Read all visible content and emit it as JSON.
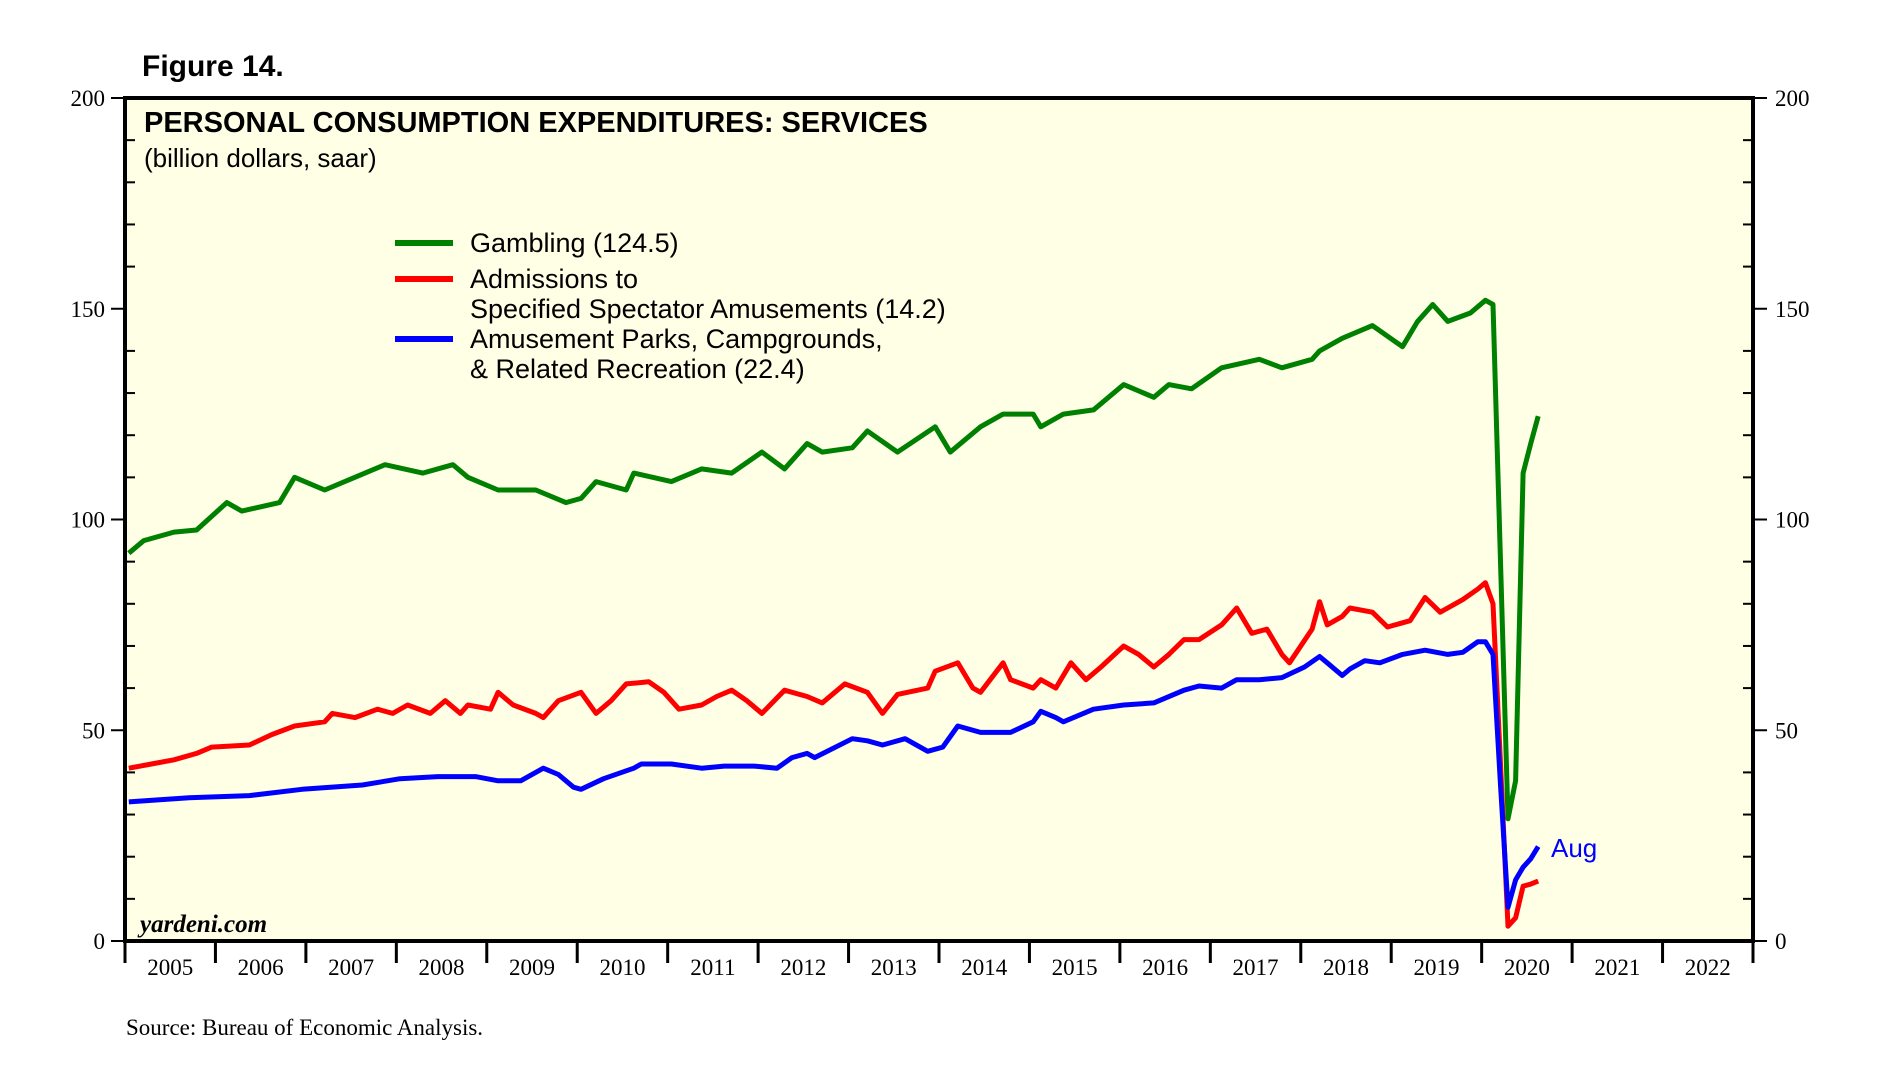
{
  "figure_label": "Figure 14.",
  "watermark": "yardeni.com",
  "source": "Source: Bureau of Economic Analysis.",
  "chart_data": {
    "type": "line",
    "title": "PERSONAL CONSUMPTION EXPENDITURES: SERVICES",
    "subtitle": "(billion dollars, saar)",
    "ylim": [
      0,
      200
    ],
    "yticks": [
      "0",
      "50",
      "100",
      "150",
      "200"
    ],
    "y_axis_sides": [
      "left",
      "right"
    ],
    "xlim": [
      "2005-01",
      "2022-12"
    ],
    "xtick_labels": [
      "2005",
      "2006",
      "2007",
      "2008",
      "2009",
      "2010",
      "2011",
      "2012",
      "2013",
      "2014",
      "2015",
      "2016",
      "2017",
      "2018",
      "2019",
      "2020",
      "2021",
      "2022"
    ],
    "grid": false,
    "legend_placement": "top-left",
    "background_color": "#ffffe6",
    "annotation": {
      "text": "Aug",
      "color": "#0000ff"
    },
    "series": [
      {
        "name": "Gambling (124.5)",
        "color": "#008000",
        "points": [
          [
            "2005-01",
            92
          ],
          [
            "2005-03",
            95
          ],
          [
            "2005-07",
            97
          ],
          [
            "2005-10",
            97.5
          ],
          [
            "2006-02",
            104
          ],
          [
            "2006-04",
            102
          ],
          [
            "2006-09",
            104
          ],
          [
            "2006-11",
            110
          ],
          [
            "2007-03",
            107
          ],
          [
            "2007-07",
            110
          ],
          [
            "2007-11",
            113
          ],
          [
            "2008-04",
            111
          ],
          [
            "2008-08",
            113
          ],
          [
            "2008-10",
            110
          ],
          [
            "2009-02",
            107
          ],
          [
            "2009-07",
            107
          ],
          [
            "2009-11",
            104
          ],
          [
            "2010-01",
            105
          ],
          [
            "2010-03",
            109
          ],
          [
            "2010-07",
            107
          ],
          [
            "2010-08",
            111
          ],
          [
            "2011-01",
            109
          ],
          [
            "2011-05",
            112
          ],
          [
            "2011-09",
            111
          ],
          [
            "2012-01",
            116
          ],
          [
            "2012-04",
            112
          ],
          [
            "2012-07",
            118
          ],
          [
            "2012-09",
            116
          ],
          [
            "2013-01",
            117
          ],
          [
            "2013-03",
            121
          ],
          [
            "2013-07",
            116
          ],
          [
            "2013-12",
            122
          ],
          [
            "2014-02",
            116
          ],
          [
            "2014-06",
            122
          ],
          [
            "2014-09",
            125
          ],
          [
            "2015-01",
            125
          ],
          [
            "2015-02",
            122
          ],
          [
            "2015-05",
            125
          ],
          [
            "2015-09",
            126
          ],
          [
            "2016-01",
            132
          ],
          [
            "2016-05",
            129
          ],
          [
            "2016-07",
            132
          ],
          [
            "2016-10",
            131
          ],
          [
            "2017-02",
            136
          ],
          [
            "2017-07",
            138
          ],
          [
            "2017-10",
            136
          ],
          [
            "2018-02",
            138
          ],
          [
            "2018-03",
            140
          ],
          [
            "2018-06",
            143
          ],
          [
            "2018-10",
            146
          ],
          [
            "2019-02",
            141
          ],
          [
            "2019-04",
            147
          ],
          [
            "2019-06",
            151
          ],
          [
            "2019-08",
            147
          ],
          [
            "2019-11",
            149
          ],
          [
            "2020-01",
            152
          ],
          [
            "2020-02",
            151
          ],
          [
            "2020-03",
            90
          ],
          [
            "2020-04",
            29
          ],
          [
            "2020-05",
            38
          ],
          [
            "2020-06",
            111
          ],
          [
            "2020-07",
            118
          ],
          [
            "2020-08",
            124.5
          ]
        ]
      },
      {
        "name": "Admissions to Specified Spectator Amusements (14.2)",
        "legend_lines": [
          "Admissions to",
          "Specified Spectator Amusements (14.2)"
        ],
        "color": "#ff0000",
        "points": [
          [
            "2005-01",
            41
          ],
          [
            "2005-04",
            42
          ],
          [
            "2005-07",
            43
          ],
          [
            "2005-10",
            44.5
          ],
          [
            "2005-12",
            46
          ],
          [
            "2006-05",
            46.5
          ],
          [
            "2006-08",
            49
          ],
          [
            "2006-11",
            51
          ],
          [
            "2007-03",
            52
          ],
          [
            "2007-04",
            54
          ],
          [
            "2007-07",
            53
          ],
          [
            "2007-10",
            55
          ],
          [
            "2007-12",
            54
          ],
          [
            "2008-02",
            56
          ],
          [
            "2008-05",
            54
          ],
          [
            "2008-07",
            57
          ],
          [
            "2008-09",
            54
          ],
          [
            "2008-10",
            56
          ],
          [
            "2009-01",
            55
          ],
          [
            "2009-02",
            59
          ],
          [
            "2009-04",
            56
          ],
          [
            "2009-07",
            54
          ],
          [
            "2009-08",
            53
          ],
          [
            "2009-10",
            57
          ],
          [
            "2010-01",
            59
          ],
          [
            "2010-03",
            54
          ],
          [
            "2010-05",
            57
          ],
          [
            "2010-07",
            61
          ],
          [
            "2010-10",
            61.5
          ],
          [
            "2010-12",
            59
          ],
          [
            "2011-02",
            55
          ],
          [
            "2011-05",
            56
          ],
          [
            "2011-07",
            58
          ],
          [
            "2011-09",
            59.5
          ],
          [
            "2011-11",
            57
          ],
          [
            "2012-01",
            54
          ],
          [
            "2012-04",
            59.5
          ],
          [
            "2012-07",
            58
          ],
          [
            "2012-09",
            56.5
          ],
          [
            "2012-12",
            61
          ],
          [
            "2013-03",
            59
          ],
          [
            "2013-05",
            54
          ],
          [
            "2013-07",
            58.5
          ],
          [
            "2013-11",
            60
          ],
          [
            "2013-12",
            64
          ],
          [
            "2014-03",
            66
          ],
          [
            "2014-05",
            60
          ],
          [
            "2014-06",
            59
          ],
          [
            "2014-09",
            66
          ],
          [
            "2014-10",
            62
          ],
          [
            "2015-01",
            60
          ],
          [
            "2015-02",
            62
          ],
          [
            "2015-04",
            60
          ],
          [
            "2015-06",
            66
          ],
          [
            "2015-08",
            62
          ],
          [
            "2015-10",
            65
          ],
          [
            "2016-01",
            70
          ],
          [
            "2016-03",
            68
          ],
          [
            "2016-05",
            65
          ],
          [
            "2016-07",
            68
          ],
          [
            "2016-09",
            71.5
          ],
          [
            "2016-11",
            71.5
          ],
          [
            "2017-02",
            75
          ],
          [
            "2017-04",
            79
          ],
          [
            "2017-06",
            73
          ],
          [
            "2017-08",
            74
          ],
          [
            "2017-10",
            68
          ],
          [
            "2017-11",
            66
          ],
          [
            "2018-02",
            74
          ],
          [
            "2018-03",
            80.5
          ],
          [
            "2018-04",
            75
          ],
          [
            "2018-06",
            77
          ],
          [
            "2018-07",
            79
          ],
          [
            "2018-10",
            78
          ],
          [
            "2018-12",
            74.5
          ],
          [
            "2019-03",
            76
          ],
          [
            "2019-05",
            81.5
          ],
          [
            "2019-07",
            78
          ],
          [
            "2019-10",
            81
          ],
          [
            "2019-12",
            83.5
          ],
          [
            "2020-01",
            85
          ],
          [
            "2020-02",
            80
          ],
          [
            "2020-03",
            42
          ],
          [
            "2020-04",
            3.5
          ],
          [
            "2020-05",
            5.5
          ],
          [
            "2020-06",
            13
          ],
          [
            "2020-07",
            13.5
          ],
          [
            "2020-08",
            14.2
          ]
        ]
      },
      {
        "name": "Amusement Parks, Campgrounds, & Related Recreation (22.4)",
        "legend_lines": [
          "Amusement Parks, Campgrounds,",
          "& Related Recreation (22.4)"
        ],
        "color": "#0000ff",
        "points": [
          [
            "2005-01",
            33
          ],
          [
            "2005-09",
            34
          ],
          [
            "2006-05",
            34.5
          ],
          [
            "2006-12",
            36
          ],
          [
            "2007-08",
            37
          ],
          [
            "2008-01",
            38.5
          ],
          [
            "2008-06",
            39
          ],
          [
            "2008-11",
            39
          ],
          [
            "2009-02",
            38
          ],
          [
            "2009-05",
            38
          ],
          [
            "2009-08",
            41
          ],
          [
            "2009-10",
            39.5
          ],
          [
            "2009-12",
            36.5
          ],
          [
            "2010-01",
            36
          ],
          [
            "2010-04",
            38.5
          ],
          [
            "2010-08",
            41
          ],
          [
            "2010-09",
            42
          ],
          [
            "2011-01",
            42
          ],
          [
            "2011-05",
            41
          ],
          [
            "2011-08",
            41.5
          ],
          [
            "2011-12",
            41.5
          ],
          [
            "2012-03",
            41
          ],
          [
            "2012-05",
            43.5
          ],
          [
            "2012-07",
            44.5
          ],
          [
            "2012-08",
            43.5
          ],
          [
            "2013-01",
            48
          ],
          [
            "2013-03",
            47.5
          ],
          [
            "2013-05",
            46.5
          ],
          [
            "2013-08",
            48
          ],
          [
            "2013-11",
            45
          ],
          [
            "2014-01",
            46
          ],
          [
            "2014-03",
            51
          ],
          [
            "2014-06",
            49.5
          ],
          [
            "2014-10",
            49.5
          ],
          [
            "2015-01",
            52
          ],
          [
            "2015-02",
            54.5
          ],
          [
            "2015-04",
            53
          ],
          [
            "2015-05",
            52
          ],
          [
            "2015-09",
            55
          ],
          [
            "2016-01",
            56
          ],
          [
            "2016-05",
            56.5
          ],
          [
            "2016-09",
            59.5
          ],
          [
            "2016-11",
            60.5
          ],
          [
            "2017-02",
            60
          ],
          [
            "2017-04",
            62
          ],
          [
            "2017-07",
            62
          ],
          [
            "2017-10",
            62.5
          ],
          [
            "2018-01",
            65
          ],
          [
            "2018-03",
            67.5
          ],
          [
            "2018-04",
            66
          ],
          [
            "2018-06",
            63
          ],
          [
            "2018-07",
            64.5
          ],
          [
            "2018-09",
            66.5
          ],
          [
            "2018-11",
            66
          ],
          [
            "2019-02",
            68
          ],
          [
            "2019-05",
            69
          ],
          [
            "2019-08",
            68
          ],
          [
            "2019-10",
            68.5
          ],
          [
            "2019-12",
            71
          ],
          [
            "2020-01",
            71
          ],
          [
            "2020-02",
            68
          ],
          [
            "2020-03",
            37
          ],
          [
            "2020-04",
            8
          ],
          [
            "2020-05",
            14.5
          ],
          [
            "2020-06",
            17.5
          ],
          [
            "2020-07",
            19.5
          ],
          [
            "2020-08",
            22.4
          ]
        ]
      }
    ]
  }
}
